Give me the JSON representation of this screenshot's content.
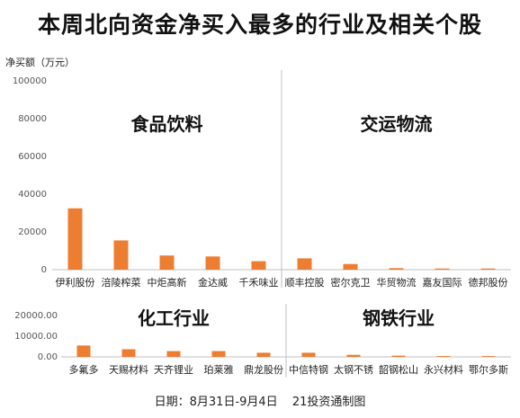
{
  "title": "本周北向资金净买入最多的行业及相关个股",
  "footer": {
    "date": "日期：8月31日-9月4日",
    "source": "21投资通制图"
  },
  "colors": {
    "bar": "#ED7D31",
    "axis": "#BFBFBF"
  },
  "chart_data": [
    {
      "type": "bar",
      "ylabel": "净买额（万元）",
      "ylim": [
        0,
        100000
      ],
      "yticks": [
        "0",
        "20000",
        "40000",
        "60000",
        "80000",
        "100000"
      ],
      "yticks_values": [
        0,
        20000,
        40000,
        60000,
        80000,
        100000
      ],
      "groups": [
        {
          "label": "食品饮料",
          "categories": [
            "伊利股份",
            "涪陵榨菜",
            "中炬高新",
            "金达威",
            "千禾味业"
          ],
          "values": [
            32500,
            15500,
            7500,
            7000,
            4500
          ]
        },
        {
          "label": "交运物流",
          "categories": [
            "顺丰控股",
            "密尔克卫",
            "华贸物流",
            "嘉友国际",
            "德邦股份"
          ],
          "values": [
            6000,
            3000,
            800,
            600,
            600
          ]
        }
      ]
    },
    {
      "type": "bar",
      "ylim": [
        0,
        20000
      ],
      "yticks": [
        "0.00",
        "10000.00",
        "20000.00"
      ],
      "yticks_values": [
        0,
        10000,
        20000
      ],
      "groups": [
        {
          "label": "化工行业",
          "categories": [
            "多氟多",
            "天赐材料",
            "天齐锂业",
            "珀莱雅",
            "鼎龙股份"
          ],
          "values": [
            5500,
            3700,
            2800,
            2800,
            2000
          ]
        },
        {
          "label": "钢铁行业",
          "categories": [
            "中信特钢",
            "太钢不锈",
            "韶钢松山",
            "永兴材料",
            "鄂尔多斯"
          ],
          "values": [
            2000,
            1000,
            600,
            400,
            400
          ]
        }
      ]
    }
  ]
}
